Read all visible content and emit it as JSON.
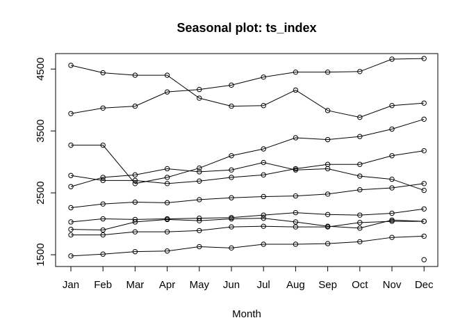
{
  "chart_data": {
    "type": "line",
    "title": "Seasonal plot: ts_index",
    "xlabel": "Month",
    "ylabel": "",
    "categories": [
      "Jan",
      "Feb",
      "Mar",
      "Apr",
      "May",
      "Jun",
      "Jul",
      "Aug",
      "Sep",
      "Oct",
      "Nov",
      "Dec"
    ],
    "ylim": [
      1310,
      4750
    ],
    "yticks": [
      1500,
      2500,
      3500,
      4500
    ],
    "grid": false,
    "legend": "none",
    "markers": "open-circle",
    "colors": {
      "line": "#000000",
      "background": "#ffffff"
    },
    "series": [
      {
        "values": [
          4560,
          4440,
          4400,
          4400,
          4030,
          3900,
          3910,
          4160,
          3830,
          3720,
          3910,
          3950
        ]
      },
      {
        "values": [
          3780,
          3870,
          3900,
          4130,
          4170,
          4240,
          4370,
          4450,
          4450,
          4460,
          4660,
          4670
        ]
      },
      {
        "values": [
          3270,
          3270,
          2650,
          2750,
          2900,
          3100,
          3210,
          3390,
          3360,
          3410,
          3530,
          3690
        ]
      },
      {
        "values": [
          2780,
          2700,
          2700,
          2650,
          2690,
          2750,
          2790,
          2890,
          2960,
          2960,
          3100,
          3180
        ]
      },
      {
        "values": [
          2600,
          2750,
          2790,
          2890,
          2840,
          2870,
          2990,
          2870,
          2890,
          2770,
          2720,
          2540
        ]
      },
      {
        "values": [
          2260,
          2320,
          2350,
          2340,
          2390,
          2420,
          2440,
          2450,
          2480,
          2550,
          2580,
          2650
        ]
      },
      {
        "values": [
          2030,
          2080,
          2070,
          2080,
          2090,
          2100,
          2140,
          2180,
          2150,
          2140,
          2170,
          2240
        ]
      },
      {
        "values": [
          1910,
          1900,
          2030,
          2070,
          2050,
          2080,
          2090,
          2030,
          1960,
          1930,
          2060,
          2040
        ]
      },
      {
        "values": [
          1820,
          1820,
          1870,
          1870,
          1890,
          1950,
          1960,
          1950,
          1950,
          2020,
          2040,
          2040
        ]
      },
      {
        "values": [
          1480,
          1510,
          1550,
          1560,
          1630,
          1610,
          1670,
          1670,
          1680,
          1710,
          1780,
          1800
        ]
      },
      {
        "values": [
          null,
          null,
          null,
          null,
          null,
          null,
          null,
          null,
          null,
          null,
          null,
          1420
        ]
      }
    ]
  }
}
